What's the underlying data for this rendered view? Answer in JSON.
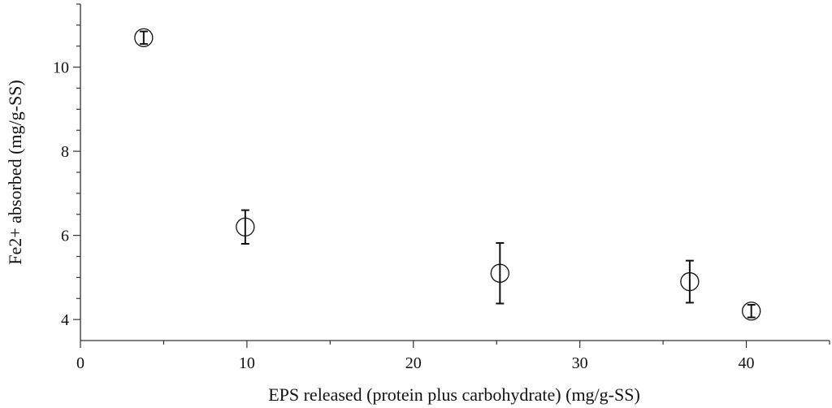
{
  "chart_data": {
    "type": "scatter",
    "title": "",
    "xlabel": "EPS released (protein plus carbohydrate) (mg/g-SS)",
    "ylabel": "Fe2+ absorbed (mg/g-SS)",
    "xlim": [
      0,
      45
    ],
    "ylim": [
      3.5,
      11.5
    ],
    "x_ticks": [
      0,
      10,
      20,
      30,
      40
    ],
    "y_ticks": [
      4,
      6,
      8,
      10
    ],
    "grid": false,
    "points": [
      {
        "x": 3.8,
        "y": 10.7,
        "err_low": 10.55,
        "err_high": 10.85
      },
      {
        "x": 9.9,
        "y": 6.2,
        "err_low": 5.8,
        "err_high": 6.6
      },
      {
        "x": 25.2,
        "y": 5.1,
        "err_low": 4.38,
        "err_high": 5.82
      },
      {
        "x": 36.6,
        "y": 4.9,
        "err_low": 4.4,
        "err_high": 5.4
      },
      {
        "x": 40.3,
        "y": 4.2,
        "err_low": 4.05,
        "err_high": 4.35
      }
    ]
  }
}
